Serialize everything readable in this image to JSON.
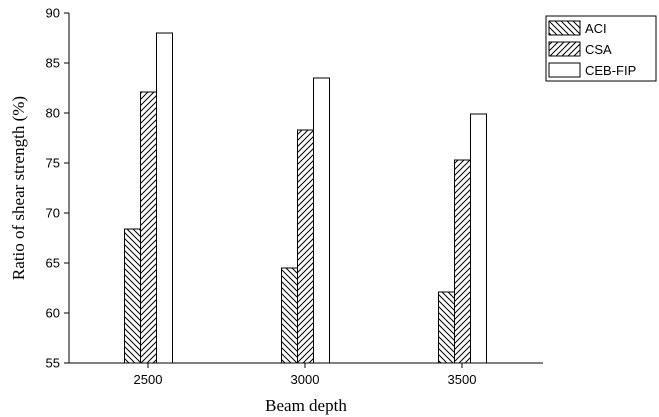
{
  "chart_data": {
    "type": "bar",
    "title": "",
    "xlabel": "Beam depth",
    "ylabel": "Ratio of shear strength (%)",
    "ylim": [
      55,
      90
    ],
    "yticks": [
      "55",
      "60",
      "65",
      "70",
      "75",
      "80",
      "85",
      "90"
    ],
    "categories": [
      "2500",
      "3000",
      "3500"
    ],
    "grid": false,
    "legend_position": "top-right, outside plot",
    "series": [
      {
        "name": "ACI",
        "pattern": "back-diagonal-hatch",
        "values": [
          68.4,
          64.5,
          62.1
        ]
      },
      {
        "name": "CSA",
        "pattern": "forward-diagonal-hatch",
        "values": [
          82.1,
          78.3,
          75.3
        ]
      },
      {
        "name": "CEB-FIP",
        "pattern": "solid-white",
        "values": [
          88.0,
          83.5,
          79.9
        ]
      }
    ]
  }
}
